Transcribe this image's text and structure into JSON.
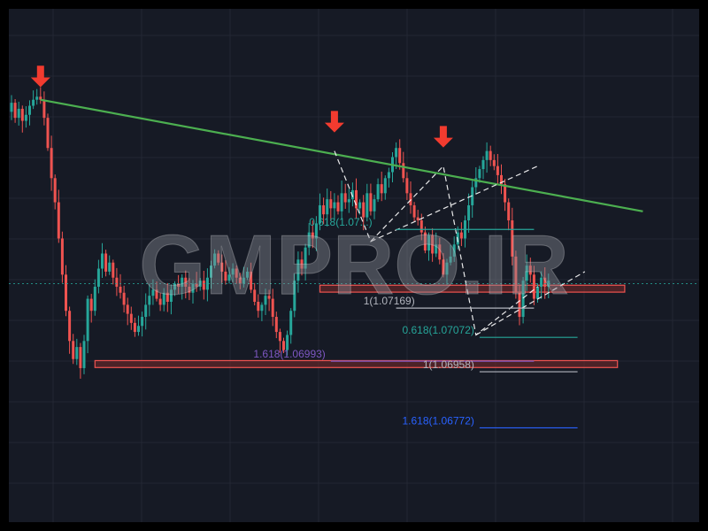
{
  "chart_data": {
    "type": "candlestick",
    "grid": true,
    "background": "#161a25",
    "colors": {
      "up": "#26a69a",
      "down": "#ef5350",
      "trendline": "#4caf50",
      "zone_fill": "#7a2a2a",
      "zone_border": "#ef5350",
      "fib_teal": "#26a69a",
      "fib_blue": "#2962ff",
      "fib_purple": "#7e57c2",
      "fib_gray": "#b2b5be",
      "arrow": "#f23b2f",
      "pattern_dashed": "#ffffff"
    },
    "price_range": [
      1.0665,
      1.08
    ],
    "current_price": 1.0725,
    "candles_close": [
      1.0785,
      1.078,
      1.0783,
      1.0779,
      1.0781,
      1.0784,
      1.0786,
      1.0787,
      1.0786,
      1.078,
      1.077,
      1.076,
      1.0752,
      1.074,
      1.0728,
      1.0716,
      1.0706,
      1.07,
      1.0704,
      1.0697,
      1.0706,
      1.072,
      1.0716,
      1.0724,
      1.073,
      1.0735,
      1.0729,
      1.0732,
      1.0727,
      1.0724,
      1.0722,
      1.0718,
      1.0715,
      1.0712,
      1.0709,
      1.0711,
      1.0714,
      1.0718,
      1.0721,
      1.0723,
      1.072,
      1.0718,
      1.0722,
      1.0719,
      1.0723,
      1.0725,
      1.0724,
      1.0727,
      1.0724,
      1.0722,
      1.0725,
      1.0724,
      1.0726,
      1.0723,
      1.0727,
      1.0731,
      1.0735,
      1.0732,
      1.0729,
      1.0726,
      1.0728,
      1.073,
      1.0727,
      1.0725,
      1.0727,
      1.0729,
      1.0723,
      1.0719,
      1.0716,
      1.0718,
      1.0721,
      1.072,
      1.0714,
      1.0709,
      1.0706,
      1.0703,
      1.0708,
      1.0716,
      1.0726,
      1.0733,
      1.073,
      1.0737,
      1.0742,
      1.074,
      1.0745,
      1.0751,
      1.0748,
      1.0753,
      1.075,
      1.0752,
      1.0749,
      1.0755,
      1.0752,
      1.0753,
      1.0756,
      1.075,
      1.0752,
      1.0747,
      1.0755,
      1.0749,
      1.0753,
      1.0758,
      1.0755,
      1.076,
      1.0762,
      1.0767,
      1.077,
      1.0765,
      1.076,
      1.0755,
      1.0751,
      1.0747,
      1.0746,
      1.0742,
      1.0736,
      1.0741,
      1.0735,
      1.0738,
      1.0733,
      1.0728,
      1.0732,
      1.0734,
      1.0738,
      1.0742,
      1.074,
      1.0746,
      1.0751,
      1.0757,
      1.076,
      1.0763,
      1.0766,
      1.0769,
      1.0766,
      1.0764,
      1.0761,
      1.0758,
      1.0752,
      1.0746,
      1.0734,
      1.0722,
      1.0714,
      1.0726,
      1.0731,
      1.0728,
      1.072,
      1.0724,
      1.0727,
      1.0724,
      1.0726
    ],
    "trendline": [
      {
        "candle": 8,
        "price": 1.0786
      },
      {
        "candle": 174,
        "price": 1.0749
      }
    ],
    "arrows": [
      {
        "candle": 8,
        "price": 1.0789
      },
      {
        "candle": 89,
        "price": 1.0774
      },
      {
        "candle": 119,
        "price": 1.0769
      }
    ],
    "zones": [
      {
        "from_candle": 23,
        "to_candle": 167,
        "price_top": 1.06995,
        "price_bottom": 1.06972
      },
      {
        "from_candle": 85,
        "to_candle": 169,
        "price_top": 1.07245,
        "price_bottom": 1.07222
      }
    ],
    "pattern_lines": [
      [
        {
          "candle": 89,
          "price": 1.0769
        },
        {
          "candle": 99,
          "price": 1.0739
        },
        {
          "candle": 119,
          "price": 1.0764
        },
        {
          "candle": 128,
          "price": 1.0708
        },
        {
          "candle": 145,
          "price": 1.0724
        }
      ],
      [
        {
          "candle": 99,
          "price": 1.0739
        },
        {
          "candle": 145,
          "price": 1.0764
        }
      ],
      [
        {
          "candle": 128,
          "price": 1.0708
        },
        {
          "candle": 158,
          "price": 1.0729
        }
      ]
    ],
    "fib_levels": [
      {
        "label": "0.618(1.07072)",
        "price": 1.07072,
        "color": "fib_teal",
        "from_candle": 129,
        "to_candle": 156
      },
      {
        "label": "1.618(1.06993)",
        "price": 1.06993,
        "color": "fib_purple",
        "from_candle": 88,
        "to_candle": 144
      },
      {
        "label": "1(1.06958)",
        "price": 1.06958,
        "color": "fib_gray",
        "from_candle": 129,
        "to_candle": 156
      },
      {
        "label": "1.618(1.06772)",
        "price": 1.06772,
        "color": "fib_blue",
        "from_candle": 129,
        "to_candle": 156
      },
      {
        "label": "0.618(1.07...)",
        "price": 1.0743,
        "color": "fib_teal",
        "from_candle": 106,
        "to_candle": 144,
        "label_anchor_candle": 82
      },
      {
        "label": "1(1.07169)",
        "price": 1.07169,
        "color": "fib_gray",
        "from_candle": 106,
        "to_candle": 144,
        "label_anchor_candle": 97
      }
    ],
    "watermark": "GMPRO.IR"
  }
}
